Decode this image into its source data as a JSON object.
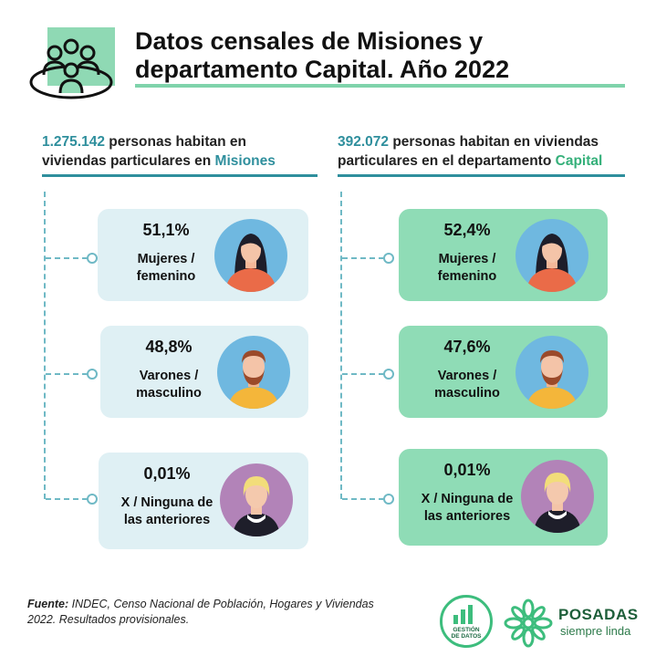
{
  "header": {
    "title_line1": "Datos censales de Misiones y",
    "title_line2": "departamento Capital. Año 2022",
    "icon": "people-group-icon"
  },
  "left": {
    "count": "1.275.142",
    "text_a": "personas habitan en",
    "text_b": "viviendas particulares en",
    "place": "Misiones",
    "cards": [
      {
        "pct": "51,1%",
        "label1": "Mujeres /",
        "label2": "femenino",
        "icon": "woman-avatar-icon"
      },
      {
        "pct": "48,8%",
        "label1": "Varones /",
        "label2": "masculino",
        "icon": "man-avatar-icon"
      },
      {
        "pct": "0,01%",
        "label1": "X / Ninguna de",
        "label2": "las anteriores",
        "icon": "person-avatar-icon"
      }
    ]
  },
  "right": {
    "count": "392.072",
    "text_a": "personas habitan en viviendas",
    "text_b": "particulares en el departamento",
    "place": "Capital",
    "cards": [
      {
        "pct": "52,4%",
        "label1": "Mujeres /",
        "label2": "femenino",
        "icon": "woman-avatar-icon"
      },
      {
        "pct": "47,6%",
        "label1": "Varones /",
        "label2": "masculino",
        "icon": "man-avatar-icon"
      },
      {
        "pct": "0,01%",
        "label1": "X / Ninguna de",
        "label2": "las anteriores",
        "icon": "person-avatar-icon"
      }
    ]
  },
  "footer": {
    "source_label": "Fuente:",
    "source_line1": " INDEC, Censo Nacional de Población, Hogares y Viviendas",
    "source_line2": "2022. Resultados provisionales.",
    "logo1_line1": "GESTIÓN",
    "logo1_line2": "DE DATOS",
    "logo2_title": "POSADAS",
    "logo2_sub": "siempre linda"
  },
  "colors": {
    "accent_green": "#8fdcb6",
    "accent_teal": "#2f8f9d",
    "card_left": "#dff0f4"
  }
}
